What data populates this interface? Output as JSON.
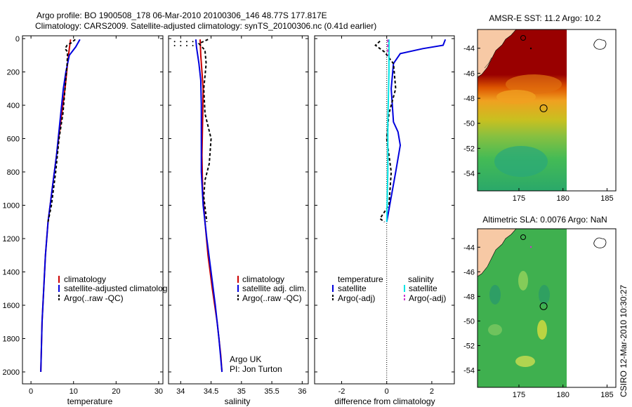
{
  "header": {
    "line1": "Argo profile: BO 1900508_178 06-Mar-2010 20100306_146 48.77S 177.817E",
    "line2": "Climatology: CARS2009. Satellite-adjusted climatology: synTS_20100306.nc (0.41d earlier)"
  },
  "side_label": "CSIRO 12-Mar-2010 10:30:27",
  "colors": {
    "climatology": "#cc0000",
    "satellite": "#0000dd",
    "argo": "#000000",
    "salinity_satellite": "#00e5e5",
    "salinity_argo": "#cc33cc",
    "land": "#f7c9a5"
  },
  "chart_data": [
    {
      "type": "line",
      "xlabel": "temperature",
      "xlim": [
        -2,
        31
      ],
      "ylim": [
        0,
        2050
      ],
      "y_reversed": true,
      "xticks": [
        0,
        10,
        20,
        30
      ],
      "yticks": [
        0,
        200,
        400,
        600,
        800,
        1000,
        1200,
        1400,
        1600,
        1800,
        2000
      ],
      "legend": [
        "climatology",
        "satellite-adjusted climatolog",
        "Argo(..raw -QC)"
      ],
      "series": [
        {
          "name": "climatology",
          "points": [
            [
              9.3,
              5
            ],
            [
              9.0,
              60
            ],
            [
              8.6,
              150
            ],
            [
              8.0,
              300
            ],
            [
              7.0,
              500
            ],
            [
              6.0,
              700
            ],
            [
              5.0,
              900
            ],
            [
              4.0,
              1100
            ],
            [
              3.4,
              1300
            ],
            [
              3.0,
              1500
            ],
            [
              2.6,
              1700
            ],
            [
              2.4,
              1900
            ],
            [
              2.3,
              2000
            ]
          ]
        },
        {
          "name": "satellite-adjusted climatolog",
          "points": [
            [
              11.5,
              5
            ],
            [
              10.5,
              50
            ],
            [
              9.0,
              100
            ],
            [
              8.2,
              200
            ],
            [
              7.6,
              300
            ],
            [
              6.8,
              500
            ],
            [
              6.0,
              700
            ],
            [
              5.0,
              900
            ],
            [
              4.0,
              1100
            ],
            [
              3.4,
              1300
            ],
            [
              3.0,
              1500
            ],
            [
              2.6,
              1700
            ],
            [
              2.4,
              1900
            ],
            [
              2.3,
              2000
            ]
          ]
        },
        {
          "name": "Argo(..raw -QC)",
          "points": [
            [
              10.4,
              5
            ],
            [
              9.5,
              25
            ],
            [
              8.5,
              40
            ],
            [
              8.0,
              60
            ],
            [
              8.6,
              80
            ],
            [
              8.5,
              150
            ],
            [
              8.0,
              300
            ],
            [
              7.5,
              450
            ],
            [
              6.6,
              600
            ],
            [
              5.8,
              800
            ],
            [
              4.8,
              1000
            ],
            [
              4.0,
              1100
            ]
          ]
        }
      ]
    },
    {
      "type": "line",
      "xlabel": "salinity",
      "xlim": [
        33.8,
        36.1
      ],
      "ylim": [
        0,
        2050
      ],
      "y_reversed": true,
      "xticks": [
        34,
        34.5,
        35,
        35.5,
        36
      ],
      "xtick_labels": [
        "34",
        "34.5",
        "35",
        "35.5",
        "36"
      ],
      "legend": [
        "climatology",
        "satellite adj. clim.",
        "Argo(..raw -QC)"
      ],
      "annotations": [
        "Argo UK",
        "PI: Jon Turton"
      ],
      "series": [
        {
          "name": "climatology",
          "points": [
            [
              34.32,
              5
            ],
            [
              34.33,
              100
            ],
            [
              34.35,
              200
            ],
            [
              34.37,
              300
            ],
            [
              34.36,
              500
            ],
            [
              34.35,
              700
            ],
            [
              34.36,
              900
            ],
            [
              34.4,
              1100
            ],
            [
              34.45,
              1300
            ],
            [
              34.52,
              1500
            ],
            [
              34.6,
              1700
            ],
            [
              34.66,
              1900
            ],
            [
              34.68,
              2000
            ]
          ]
        },
        {
          "name": "satellite adj. clim.",
          "points": [
            [
              34.25,
              5
            ],
            [
              34.26,
              50
            ],
            [
              34.3,
              150
            ],
            [
              34.33,
              250
            ],
            [
              34.34,
              400
            ],
            [
              34.34,
              600
            ],
            [
              34.34,
              800
            ],
            [
              34.37,
              1000
            ],
            [
              34.43,
              1200
            ],
            [
              34.5,
              1400
            ],
            [
              34.57,
              1600
            ],
            [
              34.63,
              1800
            ],
            [
              34.68,
              2000
            ]
          ]
        },
        {
          "name": "Argo(..raw -QC)",
          "points": [
            [
              34.45,
              5
            ],
            [
              34.3,
              30
            ],
            [
              34.4,
              70
            ],
            [
              34.42,
              150
            ],
            [
              34.38,
              300
            ],
            [
              34.4,
              450
            ],
            [
              34.5,
              600
            ],
            [
              34.47,
              750
            ],
            [
              34.4,
              850
            ],
            [
              34.38,
              950
            ],
            [
              34.43,
              1100
            ]
          ]
        }
      ],
      "argo_surface_dots": [
        [
          33.9,
          18
        ],
        [
          34.0,
          18
        ],
        [
          34.1,
          18
        ],
        [
          34.2,
          18
        ],
        [
          33.9,
          42
        ],
        [
          34.0,
          42
        ],
        [
          34.1,
          42
        ],
        [
          34.2,
          42
        ]
      ]
    },
    {
      "type": "line",
      "xlabel": "difference from climatology",
      "xlim": [
        -3.2,
        3.0
      ],
      "ylim": [
        0,
        2050
      ],
      "y_reversed": true,
      "xticks": [
        -2,
        0,
        2
      ],
      "legend": [
        "temperature",
        "satellite",
        "Argo(-adj)",
        "salinity",
        "satellite",
        "Argo(-adj)"
      ],
      "series": [
        {
          "name": "temperature satellite",
          "points": [
            [
              2.6,
              5
            ],
            [
              2.5,
              40
            ],
            [
              1.6,
              60
            ],
            [
              0.6,
              90
            ],
            [
              0.3,
              150
            ],
            [
              0.2,
              300
            ],
            [
              0.3,
              500
            ],
            [
              0.5,
              560
            ],
            [
              0.6,
              640
            ],
            [
              0.4,
              800
            ],
            [
              0.2,
              950
            ],
            [
              0.0,
              1100
            ]
          ]
        },
        {
          "name": "temperature Argo(-adj)",
          "points": [
            [
              -0.3,
              15
            ],
            [
              -0.5,
              40
            ],
            [
              -0.1,
              80
            ],
            [
              0.3,
              150
            ],
            [
              0.4,
              300
            ],
            [
              0.1,
              450
            ],
            [
              0.0,
              600
            ],
            [
              0.2,
              800
            ],
            [
              0.1,
              1000
            ],
            [
              -0.3,
              1080
            ],
            [
              -0.1,
              1100
            ]
          ]
        },
        {
          "name": "salinity satellite",
          "points": [
            [
              0.1,
              5
            ],
            [
              0.1,
              200
            ],
            [
              0.05,
              500
            ],
            [
              0.05,
              800
            ],
            [
              0.0,
              1100
            ]
          ]
        },
        {
          "name": "salinity Argo(-adj)",
          "points": [
            [
              0.05,
              5
            ],
            [
              0.05,
              100
            ]
          ]
        }
      ]
    },
    {
      "type": "heatmap",
      "title": "AMSR-E SST: 11.2 Argo: 10.2",
      "xticks": [
        175,
        180,
        185
      ],
      "yticks": [
        -44,
        -46,
        -48,
        -50,
        -52,
        -54
      ],
      "xlim": [
        170.3,
        186
      ],
      "ylim": [
        -55.4,
        -42.5
      ],
      "float_position": [
        177.8,
        -48.8
      ]
    },
    {
      "type": "heatmap",
      "title": "Altimetric SLA: 0.0076 Argo: NaN",
      "xticks": [
        175,
        180,
        185
      ],
      "yticks": [
        -44,
        -46,
        -48,
        -50,
        -52,
        -54
      ],
      "xlim": [
        170.3,
        186
      ],
      "ylim": [
        -55.4,
        -42.5
      ],
      "float_position": [
        177.8,
        -48.8
      ]
    }
  ]
}
